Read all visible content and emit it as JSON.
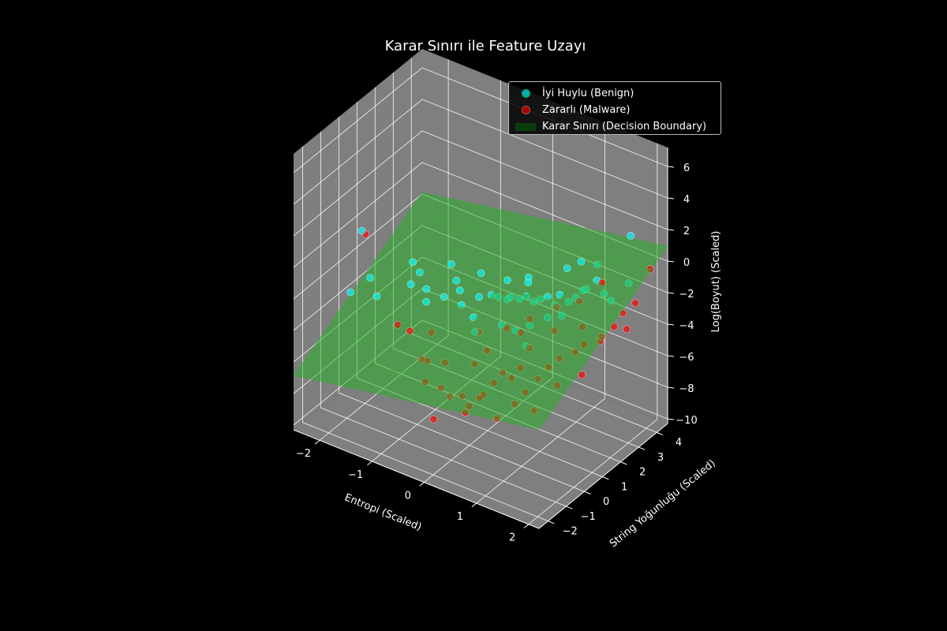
{
  "chart_data": {
    "type": "scatter",
    "projection": "3d",
    "title": "Karar Sınırı ile Feature Uzayı",
    "xlabel": "Entropi (Scaled)",
    "ylabel": "String Yoğunluğu (Scaled)",
    "zlabel": "Log(Boyut) (Scaled)",
    "xlim": [
      -2.5,
      2.2
    ],
    "ylim": [
      -2.5,
      4.6
    ],
    "zlim": [
      -10.3,
      7.2
    ],
    "xticks": [
      "−2",
      "−1",
      "0",
      "1",
      "2"
    ],
    "yticks": [
      "−2",
      "−1",
      "0",
      "1",
      "2",
      "3",
      "4"
    ],
    "zticks": [
      "−10",
      "−8",
      "−6",
      "−4",
      "−2",
      "0",
      "2",
      "4",
      "6"
    ],
    "grid": true,
    "legend_position": "upper right",
    "background": "#000000",
    "pane_color": "#7f7f7f",
    "series": [
      {
        "name": "İyi Huylu (Benign)",
        "color": "#00ffff",
        "marker": "o",
        "points": [
          [
            -2.2,
            0.4,
            0.0
          ],
          [
            -2.0,
            -0.8,
            -2.5
          ],
          [
            -1.6,
            -0.5,
            -2.5
          ],
          [
            -1.9,
            0.0,
            -2.2
          ],
          [
            -1.4,
            0.8,
            -2.7
          ],
          [
            -1.1,
            0.8,
            -2.6
          ],
          [
            -0.8,
            0.9,
            -2.8
          ],
          [
            -0.6,
            1.2,
            -2.4
          ],
          [
            -0.5,
            1.0,
            -3.0
          ],
          [
            -0.3,
            1.4,
            -2.6
          ],
          [
            -0.1,
            1.5,
            -2.3
          ],
          [
            0.0,
            1.6,
            -2.4
          ],
          [
            0.1,
            1.8,
            -2.6
          ],
          [
            0.2,
            1.7,
            -2.2
          ],
          [
            0.3,
            1.9,
            -2.4
          ],
          [
            0.4,
            2.0,
            -2.2
          ],
          [
            0.5,
            2.1,
            -2.5
          ],
          [
            0.6,
            2.2,
            -2.3
          ],
          [
            0.7,
            2.3,
            -2.1
          ],
          [
            0.8,
            2.4,
            -2.6
          ],
          [
            0.9,
            2.4,
            -1.8
          ],
          [
            1.0,
            2.6,
            -2.3
          ],
          [
            1.1,
            2.7,
            -2.0
          ],
          [
            1.2,
            2.8,
            -1.5
          ],
          [
            1.3,
            2.7,
            -1.2
          ],
          [
            1.4,
            3.0,
            -0.8
          ],
          [
            1.5,
            3.1,
            -1.6
          ],
          [
            1.6,
            3.2,
            -2.0
          ],
          [
            1.8,
            3.6,
            -1.0
          ],
          [
            1.7,
            4.0,
            1.5
          ],
          [
            0.5,
            1.8,
            -1.0
          ],
          [
            0.2,
            1.2,
            -3.5
          ],
          [
            -0.2,
            0.8,
            -3.2
          ],
          [
            -1.0,
            0.5,
            -3.0
          ],
          [
            -1.3,
            1.0,
            -2.0
          ],
          [
            0.6,
            1.6,
            -3.4
          ],
          [
            0.8,
            2.0,
            -3.0
          ],
          [
            1.0,
            2.2,
            -2.8
          ],
          [
            -0.4,
            1.8,
            -1.6
          ],
          [
            0.0,
            2.1,
            -1.8
          ],
          [
            0.3,
            2.4,
            -1.5
          ],
          [
            0.9,
            2.8,
            -0.5
          ],
          [
            1.1,
            3.0,
            0.0
          ],
          [
            1.3,
            3.3,
            -0.2
          ],
          [
            -0.7,
            1.3,
            -2.0
          ],
          [
            -1.5,
            1.2,
            -1.8
          ],
          [
            -0.9,
            1.6,
            -1.5
          ],
          [
            0.4,
            1.4,
            -3.8
          ],
          [
            0.7,
            1.1,
            -4.1
          ],
          [
            -0.1,
            0.6,
            -3.8
          ]
        ]
      },
      {
        "name": "Zararlı (Malware)",
        "color": "#ff0000",
        "marker": "o",
        "points": [
          [
            -2.2,
            0.6,
            -0.4
          ],
          [
            -1.3,
            -0.2,
            -4.2
          ],
          [
            -1.0,
            -0.4,
            -4.0
          ],
          [
            -0.8,
            0.2,
            -4.4
          ],
          [
            -0.6,
            -0.9,
            -4.8
          ],
          [
            -0.5,
            -1.0,
            -6.0
          ],
          [
            -0.3,
            -0.7,
            -6.4
          ],
          [
            -0.2,
            -0.5,
            -7.0
          ],
          [
            0.0,
            -0.4,
            -6.8
          ],
          [
            0.1,
            -0.3,
            -7.4
          ],
          [
            0.2,
            -0.8,
            -7.2
          ],
          [
            0.3,
            -0.1,
            -6.6
          ],
          [
            0.4,
            0.2,
            -6.0
          ],
          [
            0.5,
            0.4,
            -5.4
          ],
          [
            0.6,
            0.6,
            -5.8
          ],
          [
            0.7,
            0.8,
            -5.2
          ],
          [
            0.8,
            0.2,
            -6.8
          ],
          [
            0.9,
            0.5,
            -6.2
          ],
          [
            1.0,
            0.9,
            -5.6
          ],
          [
            1.1,
            1.2,
            -5.0
          ],
          [
            1.2,
            1.5,
            -4.6
          ],
          [
            1.3,
            1.1,
            -5.8
          ],
          [
            1.4,
            1.8,
            -4.2
          ],
          [
            1.5,
            2.0,
            -3.8
          ],
          [
            1.6,
            1.6,
            -5.2
          ],
          [
            1.7,
            2.4,
            -3.4
          ],
          [
            1.8,
            2.8,
            -3.0
          ],
          [
            1.9,
            3.0,
            -2.2
          ],
          [
            2.0,
            3.4,
            -1.8
          ],
          [
            2.0,
            4.2,
            -0.4
          ],
          [
            1.5,
            3.0,
            -0.8
          ],
          [
            1.2,
            2.6,
            -2.0
          ],
          [
            0.9,
            2.2,
            -2.4
          ],
          [
            0.6,
            1.6,
            -3.0
          ],
          [
            0.3,
            1.2,
            -3.6
          ],
          [
            -0.1,
            0.8,
            -4.0
          ],
          [
            0.1,
            0.0,
            -5.0
          ],
          [
            -0.4,
            -0.2,
            -5.4
          ],
          [
            0.2,
            0.4,
            -4.4
          ],
          [
            0.8,
            1.0,
            -4.0
          ],
          [
            1.4,
            2.2,
            -3.0
          ],
          [
            1.0,
            1.8,
            -3.4
          ],
          [
            0.5,
            1.4,
            -3.8
          ],
          [
            -0.2,
            -1.4,
            -7.6
          ],
          [
            0.6,
            -0.2,
            -7.6
          ],
          [
            1.1,
            0.4,
            -7.0
          ],
          [
            -0.7,
            -0.3,
            -5.6
          ],
          [
            1.6,
            2.6,
            -4.0
          ],
          [
            1.9,
            3.2,
            -3.4
          ],
          [
            0.4,
            -0.6,
            -6.2
          ]
        ]
      }
    ],
    "surfaces": [
      {
        "name": "Karar Sınırı (Decision Boundary)",
        "color": "#22b322",
        "plane": {
          "intercept": -3.6,
          "x_coef": 0.6,
          "y_coef": 0.7
        }
      }
    ]
  }
}
